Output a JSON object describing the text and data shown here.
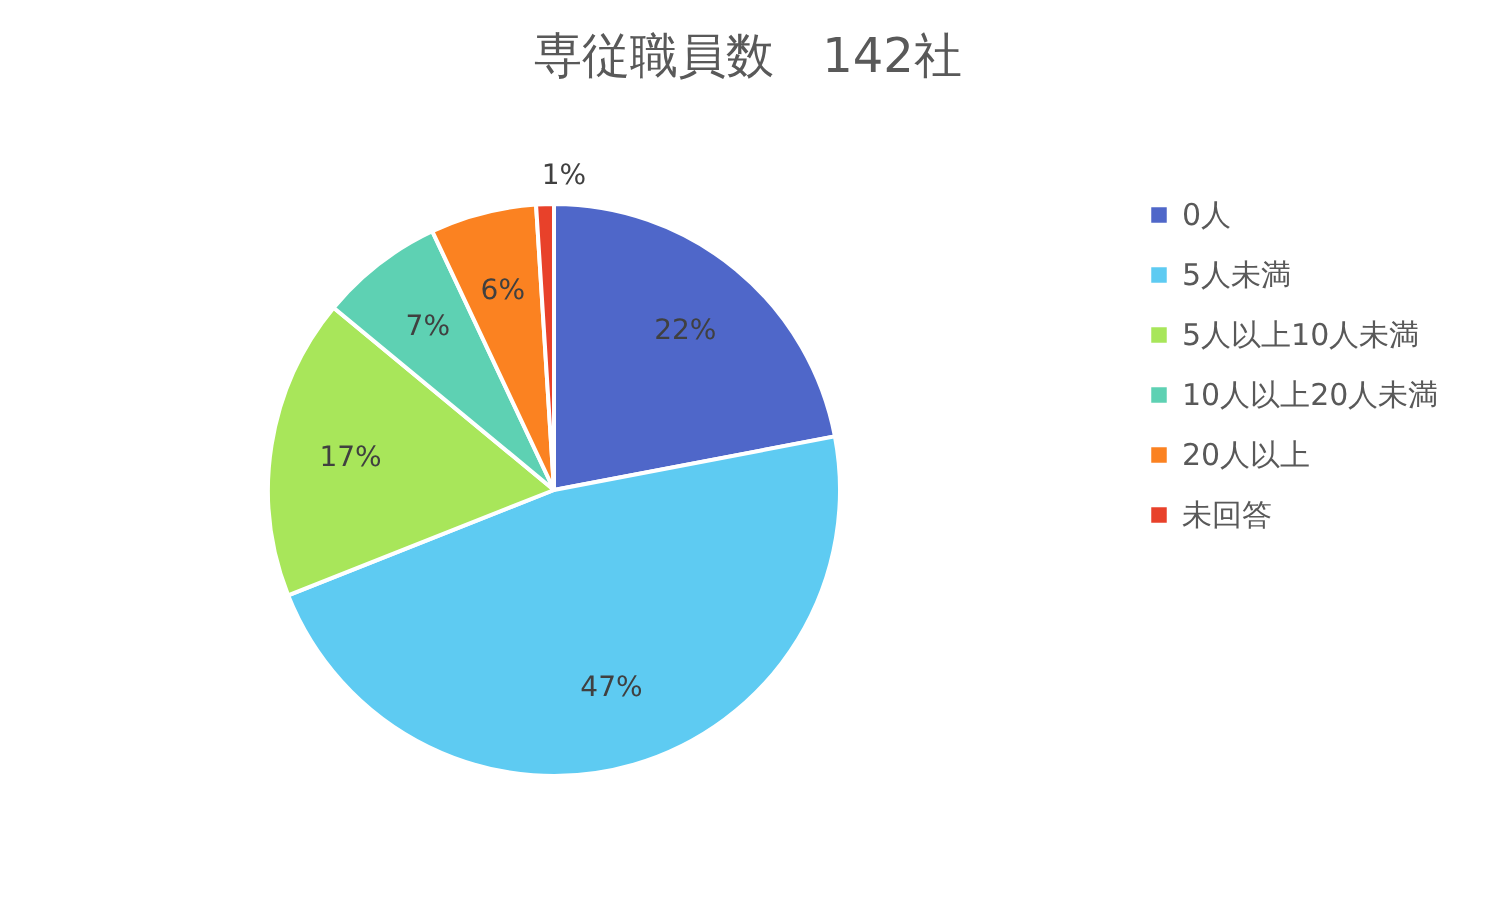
{
  "chart_data": {
    "type": "pie",
    "title": "専従職員数　142社",
    "categories": [
      "0人",
      "5人未満",
      "5人以上10人未満",
      "10人以上20人未満",
      "20人以上",
      "未回答"
    ],
    "values": [
      22,
      47,
      17,
      7,
      6,
      1
    ],
    "colors": [
      "#4f67c9",
      "#5ecbf2",
      "#a8e65a",
      "#5ed1b3",
      "#fb8221",
      "#e8412a"
    ],
    "value_labels": [
      "22%",
      "47%",
      "17%",
      "7%",
      "6%",
      "1%"
    ],
    "legend": "right"
  }
}
